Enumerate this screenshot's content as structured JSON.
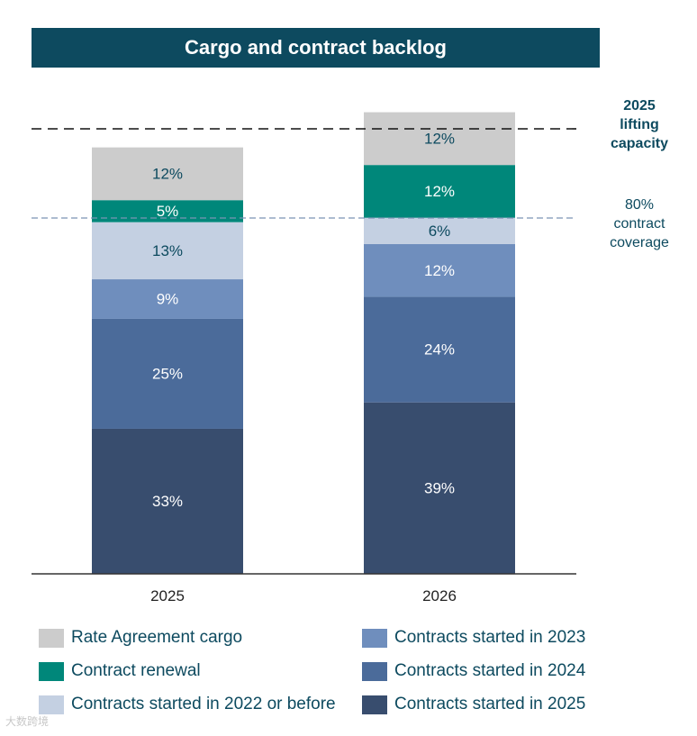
{
  "watermark": "大数跨境",
  "chart_data": {
    "type": "stacked-bar",
    "title": "Cargo and contract backlog",
    "categories": [
      "2025",
      "2026"
    ],
    "series": [
      {
        "name": "Contracts started in 2025",
        "color": "#384d6e",
        "text_color": "#ffffff",
        "values": [
          33,
          39
        ]
      },
      {
        "name": "Contracts started in 2024",
        "color": "#4b6b9a",
        "text_color": "#ffffff",
        "values": [
          25,
          24
        ]
      },
      {
        "name": "Contracts started in 2023",
        "color": "#6f8ebd",
        "text_color": "#ffffff",
        "values": [
          9,
          12
        ]
      },
      {
        "name": "Contracts started in 2022 or before",
        "color": "#c4d0e2",
        "text_color": "#0d4a5f",
        "values": [
          13,
          6
        ]
      },
      {
        "name": "Contract renewal",
        "color": "#00877a",
        "text_color": "#ffffff",
        "values": [
          5,
          12
        ]
      },
      {
        "name": "Rate Agreement cargo",
        "color": "#cccccc",
        "text_color": "#0d4a5f",
        "values": [
          12,
          12
        ]
      }
    ],
    "label_suffix": "%",
    "reference_lines": [
      {
        "name": "lifting-capacity",
        "label_lines": [
          "2025",
          "lifting",
          "capacity"
        ],
        "value": 100,
        "style": "dashed-black",
        "bold": true
      },
      {
        "name": "contract-coverage",
        "label_lines": [
          "80%",
          "contract",
          "coverage"
        ],
        "value": 80,
        "style": "dashed-blue",
        "bold": false
      }
    ],
    "legend": {
      "left": [
        "Rate Agreement cargo",
        "Contract renewal",
        "Contracts started in 2022 or before"
      ],
      "right": [
        "Contracts started in 2023",
        "Contracts started in 2024",
        "Contracts started in 2025"
      ]
    },
    "ylim": [
      0,
      110
    ]
  }
}
